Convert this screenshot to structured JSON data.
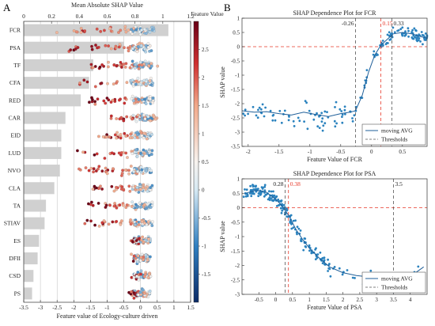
{
  "chart_data": [
    {
      "panel": "A",
      "type": "bar",
      "title": "Mean Absolute SHAP Value",
      "xlabel": "Feature value of Ecology-culture driven",
      "categories": [
        "FCR",
        "PSA",
        "TF",
        "CFA",
        "RED",
        "CAR",
        "EID",
        "LUD",
        "NVO",
        "CLA",
        "TA",
        "STIAV",
        "ES",
        "DFII",
        "CSD",
        "PS"
      ],
      "top_axis": {
        "ticks": [
          0,
          0.2,
          0.4,
          0.6,
          0.8,
          1,
          1.2
        ],
        "range": [
          0,
          1.2
        ]
      },
      "bottom_axis": {
        "ticks": [
          -3.5,
          -3,
          -2.5,
          -2,
          -1.5,
          -1,
          -0.5,
          0,
          0.5,
          1,
          1.5
        ],
        "range": [
          -3.5,
          1.5
        ]
      },
      "importance": [
        1.04,
        0.72,
        0.5,
        0.47,
        0.41,
        0.3,
        0.27,
        0.27,
        0.26,
        0.22,
        0.16,
        0.15,
        0.11,
        0.1,
        0.07,
        0.06
      ],
      "colorbar": {
        "label": "Feature Value",
        "ticks": [
          2.5,
          2,
          1.5,
          1,
          0.5,
          0,
          -0.5,
          -1,
          -1.5
        ],
        "range": [
          -2,
          3
        ]
      },
      "spread": [
        {
          "min": -2.8,
          "max": 0.1,
          "tail": 0.75
        },
        {
          "min": -2.2,
          "max": 0.2,
          "tail": 0.6
        },
        {
          "min": -1.5,
          "max": 0.55,
          "tail": 0.7
        },
        {
          "min": -2.0,
          "max": 0.3,
          "tail": 0.7
        },
        {
          "min": -1.6,
          "max": 0.3,
          "tail": 0.7
        },
        {
          "min": -0.9,
          "max": 0.5,
          "tail": 0.65
        },
        {
          "min": -1.4,
          "max": 0.3,
          "tail": 0.65
        },
        {
          "min": -1.9,
          "max": 0.3,
          "tail": 0.6
        },
        {
          "min": -1.9,
          "max": 0.25,
          "tail": 0.6
        },
        {
          "min": -1.5,
          "max": 0.25,
          "tail": 0.6
        },
        {
          "min": -1.6,
          "max": 0.25,
          "tail": 0.6
        },
        {
          "min": -1.7,
          "max": 0.25,
          "tail": 0.65
        },
        {
          "min": -0.3,
          "max": 0.25,
          "tail": 0.5
        },
        {
          "min": -0.3,
          "max": 0.25,
          "tail": 0.5
        },
        {
          "min": -0.3,
          "max": 0.3,
          "tail": 0.5
        },
        {
          "min": -0.35,
          "max": 0.2,
          "tail": 0.5
        }
      ]
    },
    {
      "panel": "B",
      "type": "scatter",
      "title": "SHAP Dependence Plot for FCR",
      "xlabel": "Feature Value of FCR",
      "ylabel": "SHAP value",
      "xlim": [
        -2.1,
        0.9
      ],
      "ylim": [
        -3.5,
        1
      ],
      "xticks": [
        -2,
        -1.5,
        -1,
        -0.5,
        0,
        0.5
      ],
      "yticks": [
        -3.5,
        -3,
        -2.5,
        -2,
        -1.5,
        -1,
        -0.5,
        0,
        0.5,
        1
      ],
      "thresholds": [
        {
          "value": -0.26,
          "label": "-0.26",
          "color": "#555555"
        },
        {
          "value": 0.15,
          "label": "0.15",
          "color": "#e8392a"
        },
        {
          "value": 0.33,
          "label": "0.33",
          "color": "#555555"
        }
      ],
      "moving_avg": {
        "x": [
          -2.1,
          -1.9,
          -1.7,
          -1.5,
          -1.3,
          -1.1,
          -0.9,
          -0.7,
          -0.5,
          -0.35,
          -0.26,
          -0.15,
          -0.05,
          0.05,
          0.15,
          0.25,
          0.35,
          0.5,
          0.65,
          0.8,
          0.9
        ],
        "y": [
          -2.25,
          -2.3,
          -2.28,
          -2.35,
          -2.4,
          -2.3,
          -2.38,
          -2.45,
          -2.35,
          -2.3,
          -2.25,
          -1.7,
          -0.9,
          -0.3,
          0.05,
          0.25,
          0.45,
          0.5,
          0.45,
          0.35,
          0.3
        ]
      },
      "legend": [
        "moving AVG",
        "Thresholds"
      ]
    },
    {
      "panel": "B",
      "type": "scatter",
      "title": "SHAP Dependence Plot for PSA",
      "xlabel": "Feature Value of PSA",
      "ylabel": "SHAP value",
      "xlim": [
        -1,
        4.5
      ],
      "ylim": [
        -3,
        1
      ],
      "xticks": [
        -0.5,
        0,
        0.5,
        1,
        1.5,
        2,
        2.5,
        3,
        3.5,
        4
      ],
      "yticks": [
        -3,
        -2.5,
        -2,
        -1.5,
        -1,
        -0.5,
        0,
        0.5,
        1
      ],
      "thresholds": [
        {
          "value": 0.28,
          "label": "0.28",
          "color": "#555555"
        },
        {
          "value": 0.38,
          "label": "0.38",
          "color": "#e8392a"
        },
        {
          "value": 3.5,
          "label": "3.5",
          "color": "#555555"
        }
      ],
      "moving_avg": {
        "x": [
          -0.9,
          -0.6,
          -0.3,
          0.0,
          0.2,
          0.4,
          0.6,
          0.8,
          1.0,
          1.3,
          1.6,
          2.0,
          2.4,
          2.8,
          3.2,
          3.5,
          3.8,
          4.1,
          4.4
        ],
        "y": [
          0.5,
          0.6,
          0.55,
          0.3,
          0.05,
          -0.3,
          -0.75,
          -1.1,
          -1.4,
          -1.75,
          -2.05,
          -2.25,
          -2.35,
          -2.4,
          -2.5,
          -2.7,
          -2.5,
          -2.3,
          -2.05
        ]
      },
      "legend": [
        "moving AVG",
        "Thresholds"
      ]
    }
  ],
  "labels": {
    "panelA": "A",
    "panelB": "B"
  }
}
